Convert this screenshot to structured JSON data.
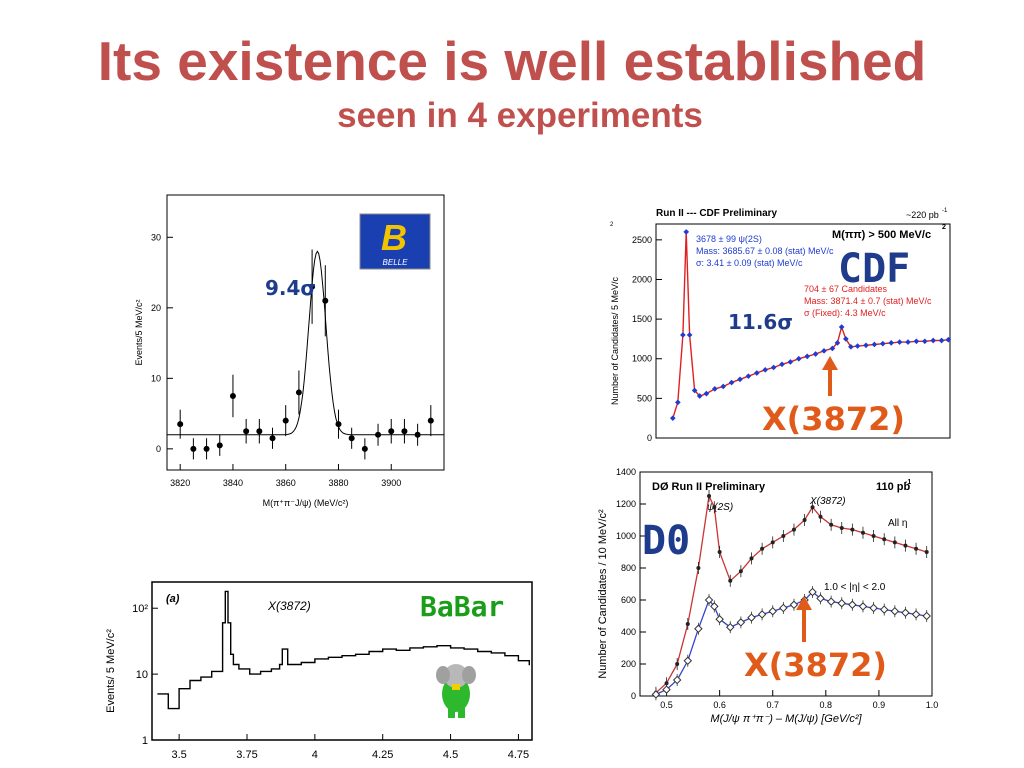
{
  "slide": {
    "title": "Its existence is well established",
    "subtitle": "seen in 4 experiments"
  },
  "colors": {
    "title": "#c0504d",
    "sigma_text": "#1f3b8c",
    "babar_text": "#1a9e1a",
    "arrow": "#e05a1a"
  },
  "annotations": {
    "belle_sigma": "9.4σ",
    "cdf_sigma": "11.6σ",
    "cdf_label": "CDF",
    "cdf_x_label": "X(3872)",
    "d0_label": "D0",
    "d0_x_label": "X(3872)",
    "babar_label": "BaBar"
  },
  "chart_data": [
    {
      "id": "belle",
      "type": "scatter",
      "logo": "BELLE",
      "xlabel": "M(π⁺π⁻J/ψ) (MeV/c²)",
      "ylabel": "Events/5 MeV/c²",
      "xlim": [
        3815,
        3920
      ],
      "ylim": [
        -3,
        36
      ],
      "xticks": [
        3820,
        3840,
        3860,
        3880,
        3900
      ],
      "yticks": [
        0,
        10,
        20,
        30
      ],
      "x": [
        3820,
        3825,
        3830,
        3835,
        3840,
        3845,
        3850,
        3855,
        3860,
        3865,
        3870,
        3875,
        3880,
        3885,
        3890,
        3895,
        3900,
        3905,
        3910,
        3915
      ],
      "y": [
        3.5,
        0,
        0,
        0.5,
        7.5,
        2.5,
        2.5,
        1.5,
        4,
        8,
        23,
        21,
        3.5,
        1.5,
        0,
        2,
        2.5,
        2.5,
        2,
        4
      ],
      "fit_peak": 3872,
      "fit_height": 26,
      "fit_width": 3.2,
      "fit_background": 2
    },
    {
      "id": "cdf",
      "type": "scatter",
      "title": "Run II --- CDF Preliminary",
      "lumi": "~220 pb",
      "lumi_sup": "-1",
      "cut": "M(ππ) > 500 MeV/c",
      "cut_sup": "2",
      "ylabel": "Number of Candidates/ 5 MeV/c",
      "ylabel_sup": "2",
      "ylim": [
        0,
        2700
      ],
      "xlim": [
        3.65,
        4.0
      ],
      "yticks": [
        0,
        500,
        1000,
        1500,
        2000,
        2500
      ],
      "psi_lines": [
        "3678 ±  99 ψ(2S)",
        "Mass: 3685.67  ± 0.08 (stat)  MeV/c",
        "σ: 3.41  ± 0.09 (stat)  MeV/c"
      ],
      "x_lines": [
        "704 ±  67 Candidates",
        "Mass: 3871.4  ± 0.7 (stat)  MeV/c",
        "σ (Fixed): 4.3  MeV/c"
      ],
      "x": [
        3.67,
        3.676,
        3.682,
        3.686,
        3.69,
        3.696,
        3.702,
        3.71,
        3.72,
        3.73,
        3.74,
        3.75,
        3.76,
        3.77,
        3.78,
        3.79,
        3.8,
        3.81,
        3.82,
        3.83,
        3.84,
        3.85,
        3.86,
        3.866,
        3.871,
        3.876,
        3.882,
        3.89,
        3.9,
        3.91,
        3.92,
        3.93,
        3.94,
        3.95,
        3.96,
        3.97,
        3.98,
        3.99,
        3.998
      ],
      "y": [
        250,
        450,
        1300,
        2600,
        1300,
        600,
        530,
        560,
        620,
        650,
        700,
        740,
        780,
        820,
        860,
        890,
        930,
        960,
        1000,
        1030,
        1060,
        1100,
        1130,
        1200,
        1400,
        1250,
        1150,
        1160,
        1170,
        1180,
        1190,
        1200,
        1210,
        1210,
        1220,
        1220,
        1230,
        1230,
        1240
      ]
    },
    {
      "id": "d0",
      "type": "scatter",
      "title": "DØ Run II Preliminary",
      "lumi": "110 pb",
      "lumi_sup": "-1",
      "ylabel": "Number of Candidates / 10 MeV/c²",
      "xlabel": "M(J/ψ π⁺π⁻) – M(J/ψ) [GeV/c²]",
      "xlim": [
        0.45,
        1.0
      ],
      "ylim": [
        0,
        1400
      ],
      "xticks": [
        0.5,
        0.6,
        0.7,
        0.8,
        0.9,
        1.0
      ],
      "yticks": [
        0,
        200,
        400,
        600,
        800,
        1000,
        1200,
        1400
      ],
      "psi_label": "ψ(2S)",
      "x_label": "X(3872)",
      "all_eta": "All η",
      "eta_range": "1.0 < |η| < 2.0",
      "series": [
        {
          "name": "All η",
          "color": "#222222",
          "fit": "#cc3333",
          "x": [
            0.48,
            0.5,
            0.52,
            0.54,
            0.56,
            0.58,
            0.59,
            0.6,
            0.62,
            0.64,
            0.66,
            0.68,
            0.7,
            0.72,
            0.74,
            0.76,
            0.775,
            0.79,
            0.81,
            0.83,
            0.85,
            0.87,
            0.89,
            0.91,
            0.93,
            0.95,
            0.97,
            0.99
          ],
          "y": [
            20,
            80,
            200,
            450,
            800,
            1250,
            1180,
            900,
            720,
            780,
            860,
            920,
            960,
            1000,
            1040,
            1100,
            1180,
            1120,
            1070,
            1050,
            1040,
            1020,
            1000,
            980,
            960,
            940,
            920,
            900
          ]
        },
        {
          "name": "1.0 < |η| < 2.0",
          "color": "#333333",
          "fit": "#3344cc",
          "x": [
            0.48,
            0.5,
            0.52,
            0.54,
            0.56,
            0.58,
            0.59,
            0.6,
            0.62,
            0.64,
            0.66,
            0.68,
            0.7,
            0.72,
            0.74,
            0.76,
            0.775,
            0.79,
            0.81,
            0.83,
            0.85,
            0.87,
            0.89,
            0.91,
            0.93,
            0.95,
            0.97,
            0.99
          ],
          "y": [
            10,
            40,
            100,
            220,
            420,
            600,
            560,
            480,
            430,
            460,
            490,
            510,
            530,
            550,
            570,
            600,
            650,
            610,
            590,
            580,
            570,
            560,
            550,
            540,
            530,
            520,
            510,
            500
          ]
        }
      ]
    },
    {
      "id": "babar",
      "type": "line",
      "panel_label": "(a)",
      "x_label": "X(3872)",
      "ylabel": "Events/ 5 MeV/c²",
      "xlim": [
        3.4,
        4.8
      ],
      "xticks": [
        3.5,
        3.75,
        4,
        4.25,
        4.5,
        4.75
      ],
      "xtick_labels": [
        "3.5",
        "3.75",
        "4",
        "4.25",
        "4.5",
        "4.75"
      ],
      "yscale": "log",
      "yticks": [
        1,
        10,
        100
      ],
      "ytick_labels": [
        "1",
        "10",
        "10²"
      ],
      "x": [
        3.42,
        3.46,
        3.5,
        3.54,
        3.58,
        3.62,
        3.66,
        3.67,
        3.68,
        3.69,
        3.7,
        3.72,
        3.76,
        3.8,
        3.84,
        3.87,
        3.88,
        3.9,
        3.95,
        4.0,
        4.05,
        4.1,
        4.15,
        4.2,
        4.25,
        4.3,
        4.35,
        4.4,
        4.45,
        4.5,
        4.55,
        4.6,
        4.65,
        4.7,
        4.75,
        4.79
      ],
      "y": [
        5,
        3,
        6,
        8,
        9,
        11,
        60,
        180,
        60,
        20,
        14,
        12,
        10,
        11,
        12,
        14,
        24,
        14,
        15,
        17,
        18,
        19,
        20,
        22,
        24,
        23,
        25,
        26,
        27,
        25,
        24,
        22,
        21,
        19,
        16,
        14
      ]
    }
  ]
}
